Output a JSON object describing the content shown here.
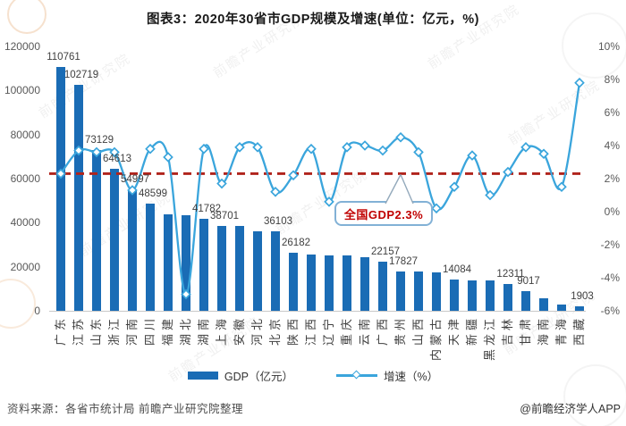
{
  "title": "图表3：2020年30省市GDP规模及增速(单位：亿元，%)",
  "chart_data": {
    "type": "combo-bar-line",
    "categories": [
      "广东",
      "江苏",
      "山东",
      "浙江",
      "河南",
      "四川",
      "福建",
      "湖北",
      "湖南",
      "上海",
      "安徽",
      "河北",
      "北京",
      "陕西",
      "江西",
      "辽宁",
      "重庆",
      "云南",
      "广西",
      "贵州",
      "山西",
      "内蒙古",
      "天津",
      "新疆",
      "黑龙江",
      "吉林",
      "甘肃",
      "海南",
      "青海",
      "西藏"
    ],
    "series": [
      {
        "name": "GDP（亿元）",
        "type": "bar",
        "axis": "left",
        "color": "#1a6cb5",
        "values": [
          110761,
          102719,
          73129,
          64613,
          54997,
          48599,
          43904,
          43443,
          41782,
          38701,
          38681,
          36207,
          36103,
          26182,
          25692,
          25115,
          25003,
          24522,
          22157,
          17827,
          17652,
          17360,
          14084,
          13798,
          13699,
          12311,
          9017,
          5532,
          3006,
          1903
        ],
        "point_labels": [
          "110761",
          "102719",
          "73129",
          "64613",
          "54997",
          "48599",
          null,
          null,
          "41782",
          "38701",
          null,
          null,
          "36103",
          "26182",
          null,
          null,
          null,
          null,
          "22157",
          "17827",
          null,
          null,
          "14084",
          null,
          null,
          "12311",
          "9017",
          null,
          null,
          "1903"
        ]
      },
      {
        "name": "增速（%）",
        "type": "line",
        "axis": "right",
        "color": "#3aa5dc",
        "values": [
          2.3,
          3.7,
          3.6,
          3.6,
          1.3,
          3.8,
          3.3,
          -5.0,
          3.8,
          1.7,
          3.9,
          3.9,
          1.2,
          2.2,
          3.8,
          0.6,
          3.9,
          4.0,
          3.7,
          4.5,
          3.6,
          0.2,
          1.5,
          3.4,
          1.0,
          2.4,
          3.9,
          3.5,
          1.5,
          7.8
        ]
      }
    ],
    "left_axis": {
      "min": 0,
      "max": 120000,
      "ticks": [
        "120000",
        "100000",
        "80000",
        "60000",
        "40000",
        "20000",
        "0"
      ]
    },
    "right_axis": {
      "min": -6,
      "max": 10,
      "ticks": [
        "10%",
        "8%",
        "6%",
        "4%",
        "2%",
        "0%",
        "-2%",
        "-4%",
        "-6%"
      ]
    },
    "reference_line": {
      "value": 2.3,
      "color": "#b0241c",
      "annotation": "全国GDP2.3%"
    },
    "grid": false,
    "legend_position": "bottom"
  },
  "legend": {
    "bar_label": "GDP（亿元）",
    "line_label": "增速（%）"
  },
  "annotation": {
    "text": "全国GDP2.3%",
    "color": "#c00000"
  },
  "footer": {
    "source": "资料来源：各省市统计局 前瞻产业研究院整理",
    "credit": "@前瞻经济学人APP"
  },
  "watermark": {
    "text": "前瞻产业研究院"
  }
}
